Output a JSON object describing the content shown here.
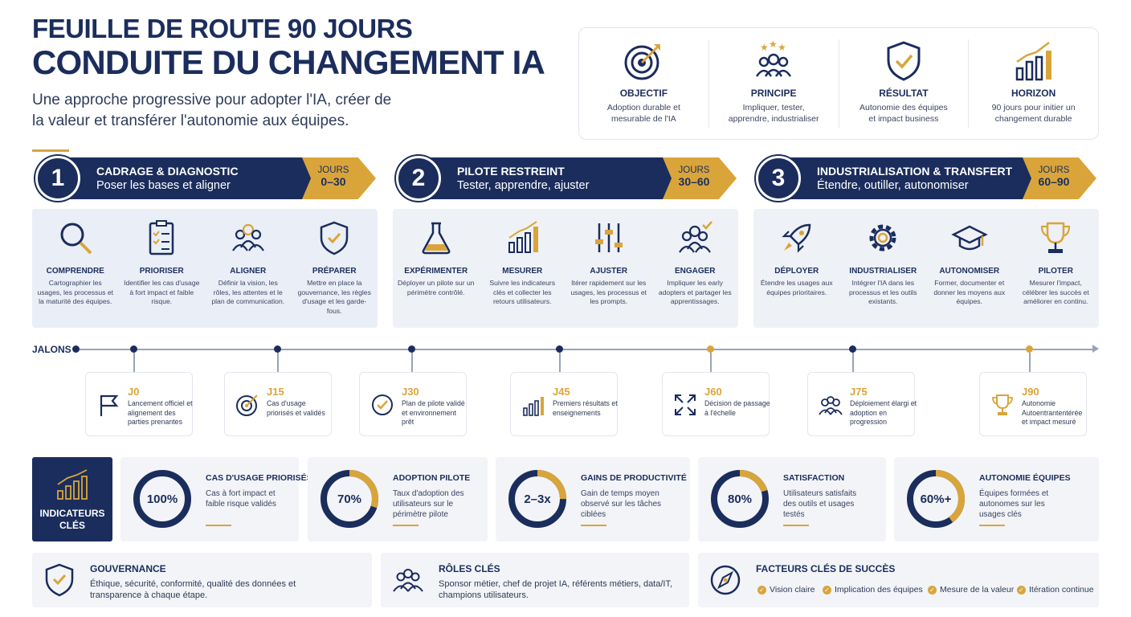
{
  "header": {
    "title1": "FEUILLE DE ROUTE 90 JOURS",
    "title2": "CONDUITE DU CHANGEMENT IA",
    "subtitle": "Une approche progressive pour adopter l'IA, créer de la valeur et transférer l'autonomie aux équipes."
  },
  "overview": [
    {
      "title": "OBJECTIF",
      "desc": "Adoption durable et mesurable de l'IA",
      "icon": "target-icon"
    },
    {
      "title": "PRINCIPE",
      "desc": "Impliquer, tester, apprendre, industrialiser",
      "icon": "team-stars-icon"
    },
    {
      "title": "RÉSULTAT",
      "desc": "Autonomie des équipes et impact business",
      "icon": "shield-check-icon"
    },
    {
      "title": "HORIZON",
      "desc": "90 jours pour initier un changement durable",
      "icon": "growth-chart-icon"
    }
  ],
  "phases": [
    {
      "num": "1",
      "title": "CADRAGE & DIAGNOSTIC",
      "subtitle": "Poser les bases et aligner",
      "days_label": "JOURS",
      "days": "0–30",
      "steps": [
        {
          "title": "COMPRENDRE",
          "desc": "Cartographier les usages, les processus et la maturité des équipes."
        },
        {
          "title": "PRIORISER",
          "desc": "Identifier les cas d'usage à fort impact et faible risque."
        },
        {
          "title": "ALIGNER",
          "desc": "Définir la vision, les rôles, les attentes et le plan de communication."
        },
        {
          "title": "PRÉPARER",
          "desc": "Mettre en place la gouvernance, les règles d'usage et les garde-fous."
        }
      ]
    },
    {
      "num": "2",
      "title": "PILOTE RESTREINT",
      "subtitle": "Tester, apprendre, ajuster",
      "days_label": "JOURS",
      "days": "30–60",
      "steps": [
        {
          "title": "EXPÉRIMENTER",
          "desc": "Déployer un pilote sur un périmètre contrôlé."
        },
        {
          "title": "MESURER",
          "desc": "Suivre les indicateurs clés et collecter les retours utilisateurs."
        },
        {
          "title": "AJUSTER",
          "desc": "Itérer rapidement sur les usages, les processus et les prompts."
        },
        {
          "title": "ENGAGER",
          "desc": "Impliquer les early adopters et partager les apprentissages."
        }
      ]
    },
    {
      "num": "3",
      "title": "INDUSTRIALISATION & TRANSFERT",
      "subtitle": "Étendre, outiller, autonomiser",
      "days_label": "JOURS",
      "days": "60–90",
      "steps": [
        {
          "title": "DÉPLOYER",
          "desc": "Étendre les usages aux équipes prioritaires."
        },
        {
          "title": "INDUSTRIALISER",
          "desc": "Intégrer l'IA dans les processus et les outils existants."
        },
        {
          "title": "AUTONOMISER",
          "desc": "Former, documenter et donner les moyens aux équipes."
        },
        {
          "title": "PILOTER",
          "desc": "Mesurer l'impact, célébrer les succès et améliorer en continu."
        }
      ]
    }
  ],
  "timeline": {
    "label": "JALONS",
    "milestones": [
      {
        "day": "J0",
        "desc": "Lancement officiel et alignement des parties prenantes"
      },
      {
        "day": "J15",
        "desc": "Cas d'usage priorisés et validés"
      },
      {
        "day": "J30",
        "desc": "Plan de pilote validé et environnement prêt"
      },
      {
        "day": "J45",
        "desc": "Premiers résultats et enseignements"
      },
      {
        "day": "J60",
        "desc": "Décision de passage à l'échelle"
      },
      {
        "day": "J75",
        "desc": "Déploiement élargi et adoption en progression"
      },
      {
        "day": "J90",
        "desc": "Autonomie Autoentrantentérée et impact mesuré"
      }
    ]
  },
  "kpis": {
    "label": "INDICATEURS CLÉS",
    "items": [
      {
        "value": "100%",
        "fraction": 1.0,
        "title": "CAS D'USAGE PRIORISÉS",
        "desc": "Cas à fort impact et faible risque validés"
      },
      {
        "value": "70%",
        "fraction": 0.7,
        "title": "ADOPTION PILOTE",
        "desc": "Taux d'adoption des utilisateurs sur le périmètre pilote"
      },
      {
        "value": "2–3x",
        "fraction": 0.75,
        "title": "GAINS DE PRODUCTIVITÉ",
        "desc": "Gain de temps moyen observé sur les tâches ciblées"
      },
      {
        "value": "80%",
        "fraction": 0.8,
        "title": "SATISFACTION",
        "desc": "Utilisateurs satisfaits des outils et usages testés"
      },
      {
        "value": "60%+",
        "fraction": 0.6,
        "title": "AUTONOMIE ÉQUIPES",
        "desc": "Équipes formées et autonomes sur les usages clés"
      }
    ]
  },
  "bottom": {
    "governance": {
      "title": "GOUVERNANCE",
      "desc": "Éthique, sécurité, conformité, qualité des données et transparence à chaque étape."
    },
    "roles": {
      "title": "RÔLES CLÉS",
      "desc": "Sponsor métier, chef de projet IA, référents métiers, data/IT, champions utilisateurs."
    },
    "factors": {
      "title": "FACTEURS CLÉS DE SUCCÈS",
      "items": [
        "Vision claire",
        "Implication des équipes",
        "Mesure de la valeur",
        "Itération continue"
      ]
    }
  },
  "colors": {
    "navy": "#1b2d5c",
    "gold": "#d9a53a"
  }
}
